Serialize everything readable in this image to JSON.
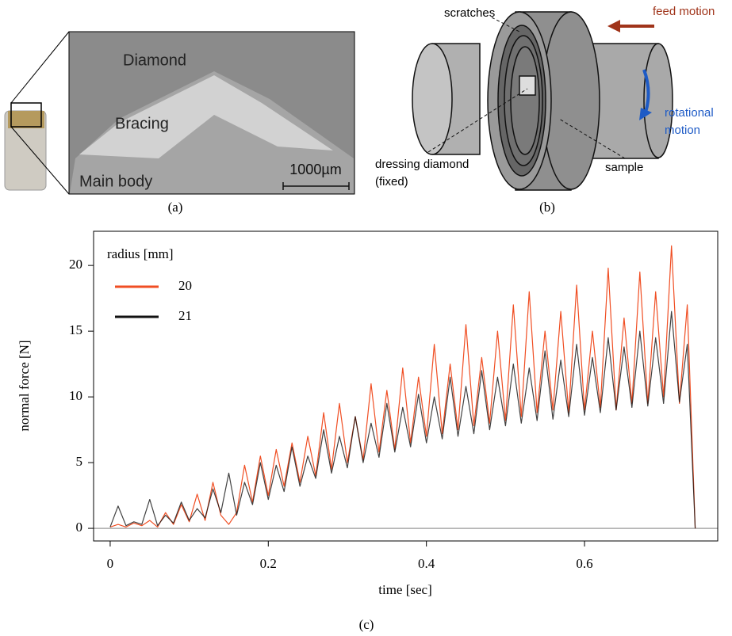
{
  "panel_a": {
    "labels": [
      "Diamond",
      "Bracing",
      "Main body"
    ],
    "scale_bar": "1000µm",
    "caption": "(a)"
  },
  "panel_b": {
    "scratches": "scratches",
    "feed_motion": "feed motion",
    "rotational_motion": [
      "rotational",
      "motion"
    ],
    "dressing_diamond": [
      "dressing diamond",
      "(fixed)"
    ],
    "sample": "sample",
    "caption": "(b)"
  },
  "chart_data": {
    "type": "line",
    "caption": "(c)",
    "x_label": "time [sec]",
    "y_label": "normal force [N]",
    "legend_title": "radius [mm]",
    "legend": "upper left",
    "hline": 0,
    "x": [
      0,
      0.01,
      0.02,
      0.03,
      0.04,
      0.05,
      0.06,
      0.07,
      0.08,
      0.09,
      0.1,
      0.11,
      0.12,
      0.13,
      0.14,
      0.15,
      0.16,
      0.17,
      0.18,
      0.19,
      0.2,
      0.21,
      0.22,
      0.23,
      0.24,
      0.25,
      0.26,
      0.27,
      0.28,
      0.29,
      0.3,
      0.31,
      0.32,
      0.33,
      0.34,
      0.35,
      0.36,
      0.37,
      0.38,
      0.39,
      0.4,
      0.41,
      0.42,
      0.43,
      0.44,
      0.45,
      0.46,
      0.47,
      0.48,
      0.49,
      0.5,
      0.51,
      0.52,
      0.53,
      0.54,
      0.55,
      0.56,
      0.57,
      0.58,
      0.59,
      0.6,
      0.61,
      0.62,
      0.63,
      0.64,
      0.65,
      0.66,
      0.67,
      0.68,
      0.69,
      0.7,
      0.71,
      0.72,
      0.73,
      0.74
    ],
    "series": [
      {
        "name": "20",
        "color": "#f04e23",
        "values": [
          0.1,
          0.3,
          0.1,
          0.4,
          0.2,
          0.6,
          0.1,
          1.2,
          0.3,
          1.8,
          0.5,
          2.6,
          0.6,
          3.5,
          1.0,
          0.3,
          1.2,
          4.8,
          2.0,
          5.5,
          2.5,
          6.0,
          3.2,
          6.5,
          3.5,
          7.0,
          4.0,
          8.8,
          4.5,
          9.5,
          5.0,
          8.5,
          5.2,
          11.0,
          5.8,
          10.5,
          6.0,
          12.2,
          6.5,
          11.5,
          7.0,
          14.0,
          7.2,
          12.5,
          7.5,
          15.5,
          7.8,
          13.0,
          8.0,
          15.0,
          8.2,
          17.0,
          8.5,
          18.0,
          8.8,
          15.0,
          9.0,
          16.5,
          8.8,
          18.5,
          9.0,
          15.0,
          9.2,
          19.8,
          9.0,
          16.0,
          9.5,
          19.5,
          9.5,
          18.0,
          10.0,
          21.5,
          9.5,
          17.0,
          0
        ]
      },
      {
        "name": "21",
        "color": "#111111",
        "values": [
          0.1,
          1.7,
          0.2,
          0.5,
          0.3,
          2.2,
          0.2,
          1.0,
          0.4,
          2.0,
          0.6,
          1.5,
          0.8,
          3.0,
          1.2,
          4.2,
          1.0,
          3.5,
          1.8,
          5.0,
          2.2,
          4.8,
          2.8,
          6.2,
          3.2,
          5.5,
          3.8,
          7.5,
          4.2,
          7.0,
          4.6,
          8.5,
          5.0,
          8.0,
          5.4,
          9.5,
          5.8,
          9.2,
          6.2,
          10.2,
          6.5,
          10.0,
          6.8,
          11.5,
          7.0,
          10.8,
          7.2,
          12.0,
          7.5,
          11.5,
          7.8,
          12.5,
          8.0,
          12.2,
          8.2,
          13.5,
          8.3,
          12.8,
          8.5,
          14.0,
          8.6,
          13.0,
          8.8,
          14.5,
          9.0,
          13.8,
          9.2,
          15.0,
          9.3,
          14.5,
          9.5,
          16.5,
          9.6,
          14.0,
          0
        ]
      }
    ],
    "xlim": [
      -0.021,
      0.7685
    ],
    "ylim": [
      -0.96,
      22.6
    ],
    "xticks": [
      0,
      0.2,
      0.4,
      0.6
    ],
    "yticks": [
      0,
      5,
      10,
      15,
      20
    ]
  }
}
